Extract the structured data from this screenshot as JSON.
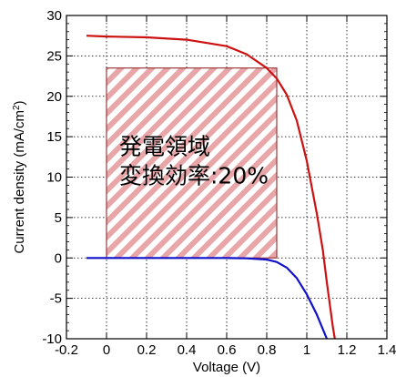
{
  "chart_data": {
    "type": "line",
    "xlabel": "Voltage (V)",
    "ylabel_main": "Current density (mA/cm",
    "ylabel_sup": "2",
    "ylabel_close": ")",
    "xlim": [
      -0.2,
      1.4
    ],
    "ylim": [
      -10,
      30
    ],
    "x_ticks": [
      "-0.2",
      "0",
      "0.2",
      "0.4",
      "0.6",
      "0.8",
      "1",
      "1.2",
      "1.4"
    ],
    "y_ticks": [
      "-10",
      "-5",
      "0",
      "5",
      "10",
      "15",
      "20",
      "25",
      "30"
    ],
    "grid": true,
    "series": [
      {
        "color": "#cc1111",
        "points": [
          [
            -0.1,
            27.5
          ],
          [
            0.0,
            27.4
          ],
          [
            0.2,
            27.3
          ],
          [
            0.4,
            27.0
          ],
          [
            0.6,
            26.2
          ],
          [
            0.7,
            25.2
          ],
          [
            0.8,
            23.5
          ],
          [
            0.85,
            22.2
          ],
          [
            0.9,
            20.2
          ],
          [
            0.95,
            17.0
          ],
          [
            1.0,
            12.0
          ],
          [
            1.05,
            5.5
          ],
          [
            1.08,
            1.0
          ],
          [
            1.1,
            -3.0
          ],
          [
            1.13,
            -8.5
          ],
          [
            1.14,
            -10.0
          ]
        ]
      },
      {
        "color": "#1111cc",
        "points": [
          [
            -0.1,
            0.0
          ],
          [
            0.2,
            0.0
          ],
          [
            0.4,
            0.0
          ],
          [
            0.6,
            0.0
          ],
          [
            0.7,
            -0.05
          ],
          [
            0.8,
            -0.2
          ],
          [
            0.85,
            -0.5
          ],
          [
            0.9,
            -1.2
          ],
          [
            0.95,
            -2.5
          ],
          [
            1.0,
            -4.5
          ],
          [
            1.05,
            -7.0
          ],
          [
            1.1,
            -10.0
          ]
        ]
      }
    ],
    "region": {
      "x0": 0.0,
      "x1": 0.85,
      "y0": 0.0,
      "y1": 23.5,
      "fill": "#e8a6a8",
      "stroke": "#9b3a3d",
      "lines": [
        "発電領域",
        "変換効率:20%"
      ]
    }
  }
}
